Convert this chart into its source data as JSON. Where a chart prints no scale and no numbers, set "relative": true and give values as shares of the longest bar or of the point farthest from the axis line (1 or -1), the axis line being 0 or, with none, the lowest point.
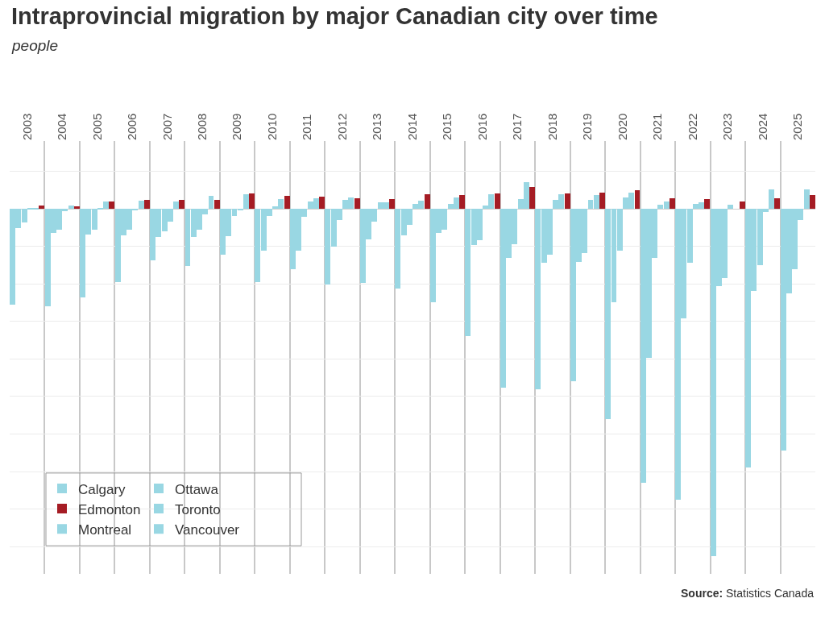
{
  "chart_data": {
    "type": "bar",
    "title": "Intraprovincial migration by major Canadian city over time",
    "subtitle": "people",
    "categories": [
      "2003",
      "2004",
      "2005",
      "2006",
      "2007",
      "2008",
      "2009",
      "2010",
      "2011",
      "2012",
      "2013",
      "2014",
      "2015",
      "2016",
      "2017",
      "2018",
      "2019",
      "2020",
      "2021",
      "2022",
      "2023",
      "2024",
      "2025"
    ],
    "relative": true,
    "grid": true,
    "legend": "bottom left",
    "series": [
      {
        "name": "Toronto",
        "color": "#99d7e3",
        "values": [
          -0.275,
          -0.281,
          -0.255,
          -0.211,
          -0.149,
          -0.165,
          -0.132,
          -0.211,
          -0.174,
          -0.218,
          -0.213,
          -0.229,
          -0.268,
          -0.367,
          -0.514,
          -0.519,
          -0.497,
          -0.604,
          -0.789,
          -0.837,
          -1,
          -0.745,
          -0.695
        ]
      },
      {
        "name": "Montreal",
        "color": "#99d7e3",
        "values": [
          -0.055,
          -0.068,
          -0.073,
          -0.075,
          -0.081,
          -0.081,
          -0.079,
          -0.119,
          -0.121,
          -0.108,
          -0.088,
          -0.077,
          -0.07,
          -0.105,
          -0.141,
          -0.154,
          -0.152,
          -0.268,
          -0.429,
          -0.316,
          -0.222,
          -0.235,
          -0.244
        ]
      },
      {
        "name": "Vancouver",
        "color": "#99d7e3",
        "values": [
          -0.04,
          -0.059,
          -0.059,
          -0.059,
          -0.064,
          -0.059,
          -0.02,
          -0.02,
          -0.022,
          -0.033,
          -0.037,
          -0.046,
          -0.059,
          -0.09,
          -0.101,
          -0.132,
          -0.127,
          -0.119,
          -0.141,
          -0.154,
          -0.198,
          -0.163,
          -0.174
        ]
      },
      {
        "name": "Ottawa",
        "color": "#99d7e3",
        "values": [
          0.002,
          -0.007,
          0.002,
          -0.002,
          -0.037,
          -0.015,
          -0.002,
          0.007,
          0.022,
          0.026,
          0.018,
          0.015,
          0.015,
          0.009,
          0.029,
          0.026,
          0.026,
          0.033,
          0.013,
          0.015,
          0.013,
          -0.009,
          -0.031
        ]
      },
      {
        "name": "Calgary",
        "color": "#99d7e3",
        "values": [
          0.004,
          0.011,
          0.022,
          0.024,
          0.022,
          0.037,
          0.042,
          0.029,
          0.031,
          0.033,
          0.02,
          0.024,
          0.033,
          0.042,
          0.077,
          0.042,
          0.04,
          0.046,
          0.022,
          0.02,
          null,
          0.057,
          0.057
        ]
      },
      {
        "name": "Edmonton",
        "color": "#a51c24",
        "values": [
          0.009,
          0.007,
          0.022,
          0.026,
          0.026,
          0.026,
          0.044,
          0.037,
          0.035,
          0.031,
          0.029,
          0.042,
          0.04,
          0.044,
          0.064,
          0.044,
          0.046,
          0.053,
          0.031,
          0.029,
          0.022,
          0.031,
          0.04
        ]
      }
    ],
    "annotations": [
      "Source: Statistics Canada"
    ]
  }
}
